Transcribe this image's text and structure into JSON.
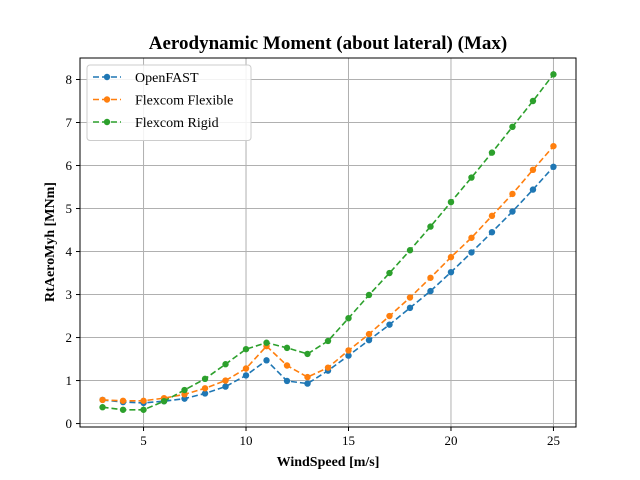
{
  "chart_data": {
    "type": "line",
    "title": "Aerodynamic Moment (about lateral) (Max)",
    "xlabel": "WindSpeed [m/s]",
    "ylabel": "RtAeroMyh [MNm]",
    "xlim": [
      1.9,
      26.1
    ],
    "ylim": [
      -0.08,
      8.5
    ],
    "xticks": [
      5,
      10,
      15,
      20,
      25
    ],
    "yticks": [
      0,
      1,
      2,
      3,
      4,
      5,
      6,
      7,
      8
    ],
    "grid": true,
    "legend_position": "top-left",
    "x": [
      3,
      4,
      5,
      6,
      7,
      8,
      9,
      10,
      11,
      12,
      13,
      14,
      15,
      16,
      17,
      18,
      19,
      20,
      21,
      22,
      23,
      24,
      25
    ],
    "series": [
      {
        "name": "OpenFAST",
        "color": "#1f77b4",
        "values": [
          0.55,
          0.5,
          0.48,
          0.52,
          0.58,
          0.7,
          0.86,
          1.12,
          1.47,
          0.99,
          0.93,
          1.23,
          1.58,
          1.94,
          2.3,
          2.69,
          3.08,
          3.52,
          3.98,
          4.45,
          4.93,
          5.44,
          5.97
        ]
      },
      {
        "name": "Flexcom Flexible",
        "color": "#ff7f0e",
        "values": [
          0.55,
          0.53,
          0.53,
          0.59,
          0.68,
          0.82,
          1.0,
          1.28,
          1.8,
          1.35,
          1.08,
          1.3,
          1.7,
          2.08,
          2.5,
          2.93,
          3.39,
          3.87,
          4.32,
          4.83,
          5.34,
          5.9,
          6.45
        ]
      },
      {
        "name": "Flexcom Rigid",
        "color": "#2ca02c",
        "values": [
          0.38,
          0.32,
          0.32,
          0.52,
          0.78,
          1.04,
          1.38,
          1.73,
          1.88,
          1.76,
          1.62,
          1.92,
          2.45,
          2.99,
          3.5,
          4.03,
          4.58,
          5.15,
          5.72,
          6.3,
          6.9,
          7.5,
          8.12
        ]
      }
    ]
  }
}
